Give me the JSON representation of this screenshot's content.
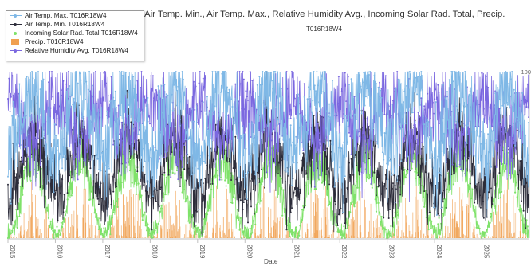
{
  "chart_data": {
    "type": "line",
    "title": "Air Temp. Min., Air Temp. Max., Relative Humidity Avg., Incoming Solar Rad. Total, Precip.",
    "subtitle": "T016R18W4",
    "xlabel": "Date",
    "x_ticks": [
      "2015",
      "2016",
      "2017",
      "2018",
      "2019",
      "2020",
      "2021",
      "2022",
      "2023",
      "2024",
      "2025"
    ],
    "x_range": [
      "2015-01-01",
      "2025-12-31"
    ],
    "y_right_ticks": [
      "100"
    ],
    "grid": false,
    "legend_position": "top-left",
    "series": [
      {
        "name": "Air Temp. Max. T016R18W4",
        "type": "line",
        "color": "#7fb8e6",
        "summary": {
          "winter_low": 120,
          "summer_high": 220,
          "noise": 45
        }
      },
      {
        "name": "Air Temp. Min. T016R18W4",
        "type": "line",
        "color": "#2c2c3a",
        "summary": {
          "winter_low": 60,
          "summer_high": 150,
          "noise": 25
        }
      },
      {
        "name": "Incoming Solar Rad. Total T016R18W4",
        "type": "line",
        "color": "#7fe26a",
        "summary": {
          "winter_low": 5,
          "summer_high": 150,
          "noise": 25
        }
      },
      {
        "name": "Precip. T016R18W4",
        "type": "bar",
        "color": "#f0a050",
        "summary": {
          "dry_season_max": 10,
          "wet_season_max": 90
        }
      },
      {
        "name": "Relative Humidity Avg. T016R18W4",
        "type": "line",
        "color": "#7b68e0",
        "summary": {
          "winter_high": 200,
          "summer_low": 140,
          "noise": 40
        }
      }
    ]
  }
}
